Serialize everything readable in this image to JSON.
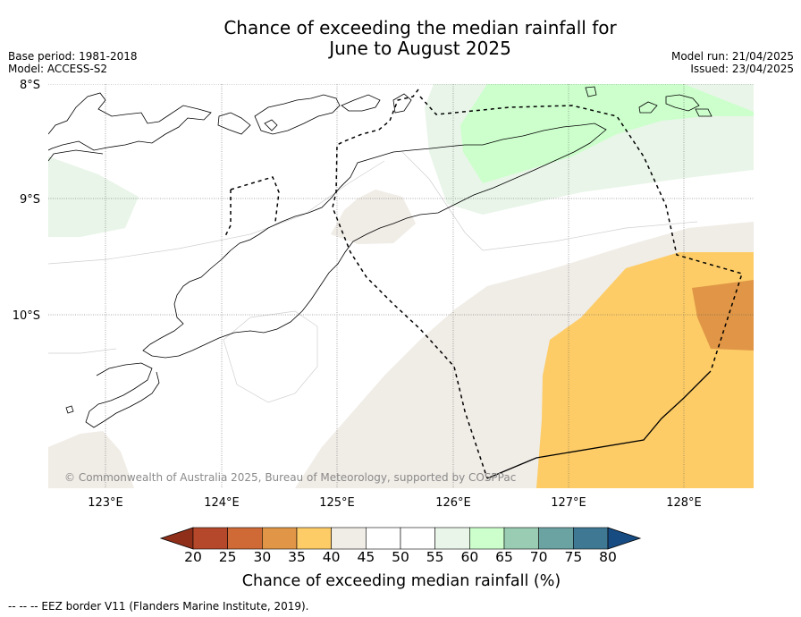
{
  "title_line1": "Chance of exceeding the median rainfall for",
  "title_line2": "June to August 2025",
  "meta": {
    "base_period": "Base period: 1981-2018",
    "model": "Model: ACCESS-S2",
    "model_run": "Model run: 21/04/2025",
    "issued": "Issued: 23/04/2025"
  },
  "map": {
    "lat_labels": [
      "8°S",
      "9°S",
      "10°S"
    ],
    "lon_labels": [
      "123°E",
      "124°E",
      "125°E",
      "126°E",
      "127°E",
      "128°E"
    ],
    "copyright": "© Commonwealth of Australia 2025, Bureau of Meteorology, supported by COSPPac"
  },
  "colorbar": {
    "ticks": [
      "20",
      "25",
      "30",
      "35",
      "40",
      "45",
      "50",
      "55",
      "60",
      "65",
      "70",
      "75",
      "80"
    ],
    "colors": [
      "#8f2f1a",
      "#b5482a",
      "#cf6a36",
      "#e09646",
      "#fdcc66",
      "#f0ece6",
      "#ffffff",
      "#ffffff",
      "#e9f5e9",
      "#ccffcc",
      "#99ccb3",
      "#6ba3a3",
      "#3f7893",
      "#174c82"
    ],
    "label": "Chance of exceeding median rainfall (%)"
  },
  "footnote": "--  --  -- EEZ border V11 (Flanders Marine Institute, 2019)."
}
